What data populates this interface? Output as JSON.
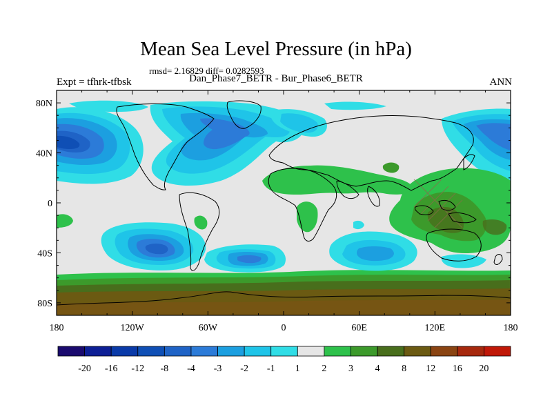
{
  "chart_data": {
    "type": "heatmap",
    "title": "Mean Sea Level Pressure (in hPa)",
    "subtitle": "Dan_Phase7_BETR - Bur_Phase6_BETR",
    "stats": "rmsd= 2.16829 diff= 0.0282593",
    "left_label": "Expt = tfhrk-tfbsk",
    "right_label": "ANN",
    "x_tick_labels": [
      "180",
      "120W",
      "60W",
      "0",
      "60E",
      "120E",
      "180"
    ],
    "x_tick_values": [
      -180,
      -120,
      -60,
      0,
      60,
      120,
      180
    ],
    "y_tick_labels": [
      "80N",
      "40N",
      "0",
      "40S",
      "80S"
    ],
    "y_tick_values": [
      80,
      40,
      0,
      -40,
      -80
    ],
    "xlim": [
      -180,
      180
    ],
    "ylim": [
      -90,
      90
    ],
    "colorbar": {
      "labels": [
        "-20",
        "-16",
        "-12",
        "-8",
        "-4",
        "-3",
        "-2",
        "-1",
        "1",
        "2",
        "3",
        "4",
        "8",
        "12",
        "16",
        "20"
      ],
      "colors": [
        "#1a0a6e",
        "#0d1f95",
        "#0a3aa8",
        "#0f4fb5",
        "#1f63c6",
        "#2c7bd8",
        "#1c9fe0",
        "#1fc4e8",
        "#30dde6",
        "#e6e6e6",
        "#2ec14b",
        "#3c9a2b",
        "#486e1c",
        "#6b5a12",
        "#8a4412",
        "#a6280d",
        "#c01808"
      ]
    },
    "fields": [
      {
        "name": "background",
        "value": 0
      },
      {
        "name": "southern-ocean-band",
        "value": 2
      },
      {
        "name": "antarctic-high",
        "value": 8
      },
      {
        "name": "north-pacific-low",
        "value": -8
      },
      {
        "name": "indo-pacific-high",
        "value": 2
      },
      {
        "name": "south-pacific-low",
        "value": -8
      },
      {
        "name": "south-atlantic-low",
        "value": -4
      },
      {
        "name": "north-atlantic-low",
        "value": -3
      }
    ]
  }
}
